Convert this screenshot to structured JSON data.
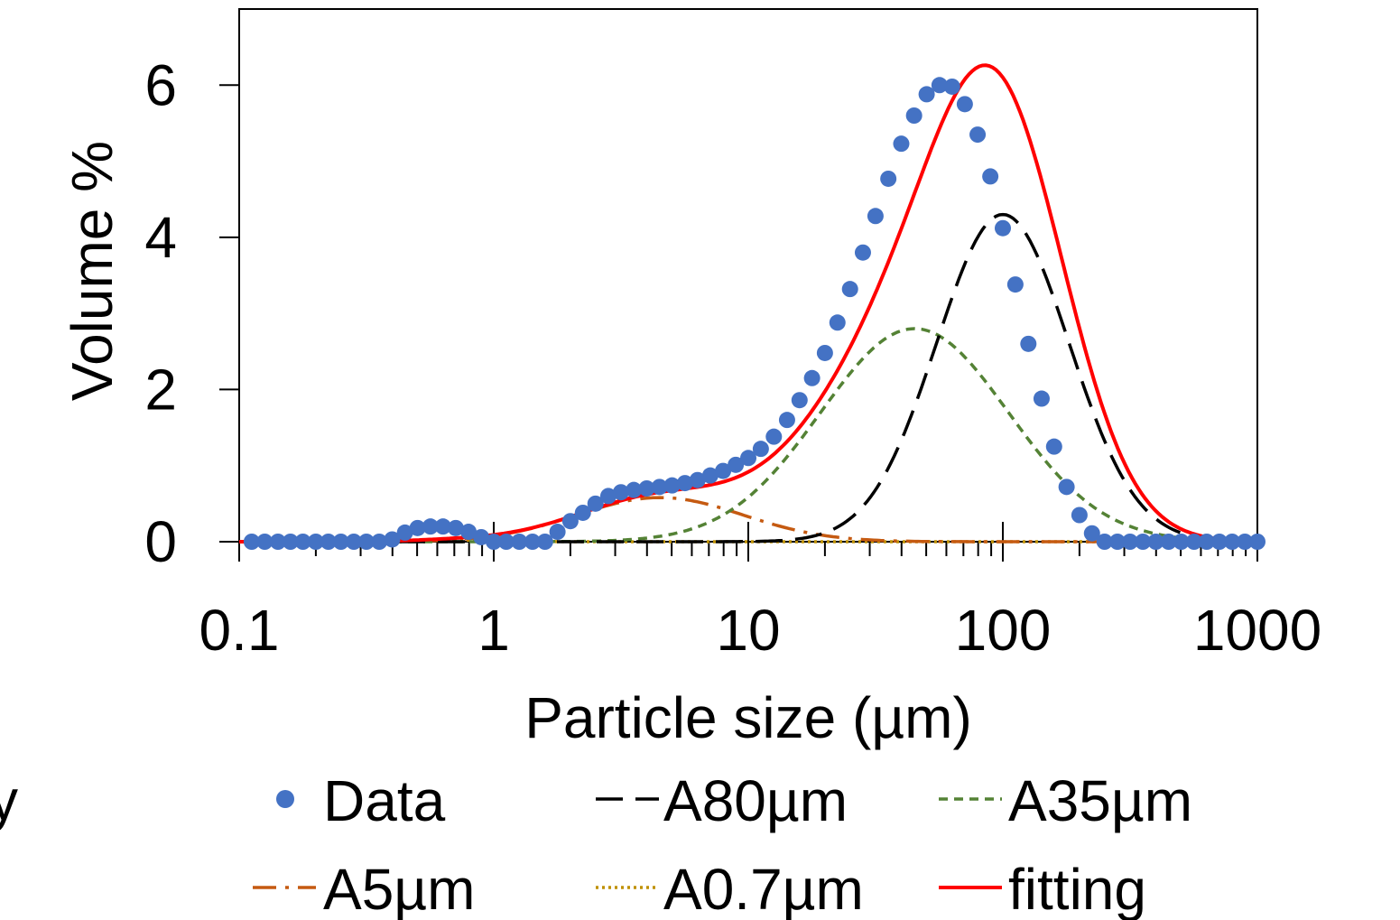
{
  "stray_text": "y",
  "chart_data": {
    "type": "line",
    "xlabel": "Particle size (µm)",
    "ylabel": "Volume %",
    "xscale": "log",
    "xlim": [
      0.1,
      1000
    ],
    "ylim": [
      0,
      7
    ],
    "x_ticks": [
      0.1,
      1,
      10,
      100,
      1000
    ],
    "x_tick_labels": [
      "0.1",
      "1",
      "10",
      "100",
      "1000"
    ],
    "y_ticks": [
      0,
      2,
      4,
      6
    ],
    "y_tick_labels": [
      "0",
      "2",
      "4",
      "6"
    ],
    "grid": false,
    "legend_position": "bottom",
    "series": [
      {
        "name": "Data",
        "style": "markers",
        "color": "#4472C4",
        "x": [
          0.112,
          0.126,
          0.142,
          0.159,
          0.178,
          0.2,
          0.224,
          0.251,
          0.282,
          0.316,
          0.355,
          0.399,
          0.448,
          0.502,
          0.564,
          0.632,
          0.709,
          0.796,
          0.893,
          1.0,
          1.12,
          1.26,
          1.42,
          1.59,
          1.78,
          2.0,
          2.24,
          2.51,
          2.82,
          3.16,
          3.55,
          3.99,
          4.48,
          5.02,
          5.64,
          6.32,
          7.09,
          7.96,
          8.93,
          10.0,
          11.2,
          12.6,
          14.2,
          15.9,
          17.8,
          20.0,
          22.4,
          25.1,
          28.2,
          31.6,
          35.5,
          39.9,
          44.8,
          50.2,
          56.4,
          63.2,
          70.9,
          79.6,
          89.3,
          100,
          112,
          126,
          142,
          159,
          178,
          200,
          224,
          251,
          282,
          316,
          355,
          399,
          448,
          502,
          564,
          632,
          709,
          796,
          893,
          1000
        ],
        "y": [
          0,
          0,
          0,
          0,
          0,
          0,
          0,
          0,
          0,
          0,
          0,
          0.03,
          0.12,
          0.18,
          0.2,
          0.2,
          0.18,
          0.13,
          0.06,
          0,
          0,
          0,
          0,
          0,
          0.13,
          0.27,
          0.38,
          0.5,
          0.6,
          0.65,
          0.68,
          0.7,
          0.72,
          0.74,
          0.77,
          0.81,
          0.87,
          0.93,
          1.01,
          1.1,
          1.22,
          1.38,
          1.6,
          1.86,
          2.15,
          2.48,
          2.88,
          3.32,
          3.8,
          4.28,
          4.77,
          5.23,
          5.6,
          5.88,
          6.0,
          5.98,
          5.75,
          5.35,
          4.8,
          4.12,
          3.38,
          2.6,
          1.88,
          1.25,
          0.72,
          0.35,
          0.11,
          0,
          0,
          0,
          0,
          0,
          0,
          0,
          0,
          0,
          0,
          0,
          0,
          0
        ]
      },
      {
        "name": "A80µm",
        "style": "dashed",
        "color": "#000000",
        "mu": 100,
        "sigma": 0.6,
        "amplitude": 4.3
      },
      {
        "name": "A35µm",
        "style": "short-dashed",
        "color": "#548235",
        "mu": 45,
        "sigma": 0.85,
        "amplitude": 2.8
      },
      {
        "name": "A5µm",
        "style": "dash-dot",
        "color": "#C55A11",
        "mu": 4.5,
        "sigma": 0.75,
        "amplitude": 0.58
      },
      {
        "name": "A0.7µm",
        "style": "dotted",
        "color": "#BF9000",
        "mu": 0.7,
        "sigma": 0.4,
        "amplitude": 0.02
      },
      {
        "name": "fitting",
        "style": "solid",
        "color": "#FF0000",
        "components": [
          "A80µm",
          "A35µm",
          "A5µm",
          "A0.7µm"
        ]
      }
    ]
  }
}
